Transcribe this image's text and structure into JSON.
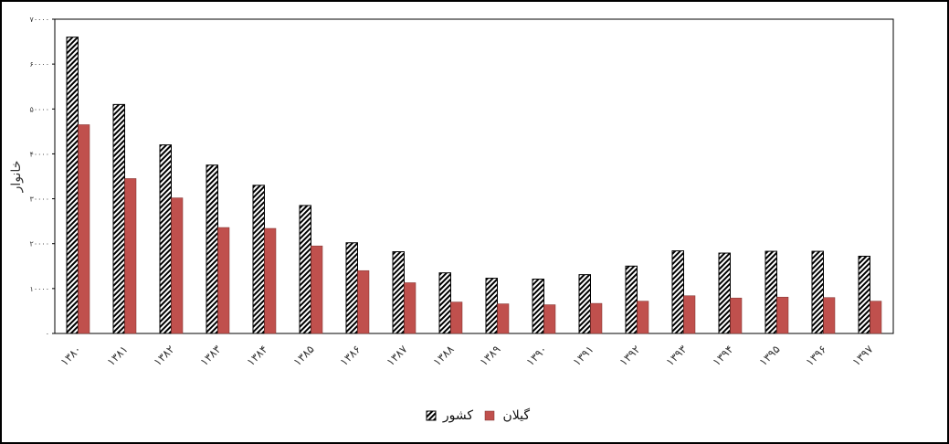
{
  "chart_data": {
    "type": "bar",
    "ylabel": "خانوار",
    "ylim": [
      0,
      70000
    ],
    "yticks": [
      0,
      10000,
      20000,
      30000,
      40000,
      50000,
      60000,
      70000
    ],
    "ytick_labels": [
      "۰",
      "۱۰۰۰۰",
      "۲۰۰۰۰",
      "۳۰۰۰۰",
      "۴۰۰۰۰",
      "۵۰۰۰۰",
      "۶۰۰۰۰",
      "۷۰۰۰۰"
    ],
    "categories": [
      "۱۳۸۰",
      "۱۳۸۱",
      "۱۳۸۲",
      "۱۳۸۳",
      "۱۳۸۴",
      "۱۳۸۵",
      "۱۳۸۶",
      "۱۳۸۷",
      "۱۳۸۸",
      "۱۳۸۹",
      "۱۳۹۰",
      "۱۳۹۱",
      "۱۳۹۲",
      "۱۳۹۳",
      "۱۳۹۴",
      "۱۳۹۵",
      "۱۳۹۶",
      "۱۳۹۷"
    ],
    "series": [
      {
        "name": "کشور",
        "pattern": "hatch",
        "color": "#000000",
        "values": [
          66000,
          51000,
          42000,
          37500,
          33000,
          28500,
          20200,
          18200,
          13500,
          12300,
          12100,
          13100,
          15000,
          18400,
          17900,
          18300,
          18300,
          17200
        ]
      },
      {
        "name": "گیلان",
        "pattern": "solid",
        "color": "#C0504D",
        "values": [
          46500,
          34500,
          30200,
          23600,
          23400,
          19500,
          14000,
          11300,
          7000,
          6600,
          6400,
          6700,
          7200,
          8400,
          7900,
          8100,
          8000,
          7200
        ]
      }
    ],
    "grid": false,
    "legend_position": "bottom-center"
  }
}
